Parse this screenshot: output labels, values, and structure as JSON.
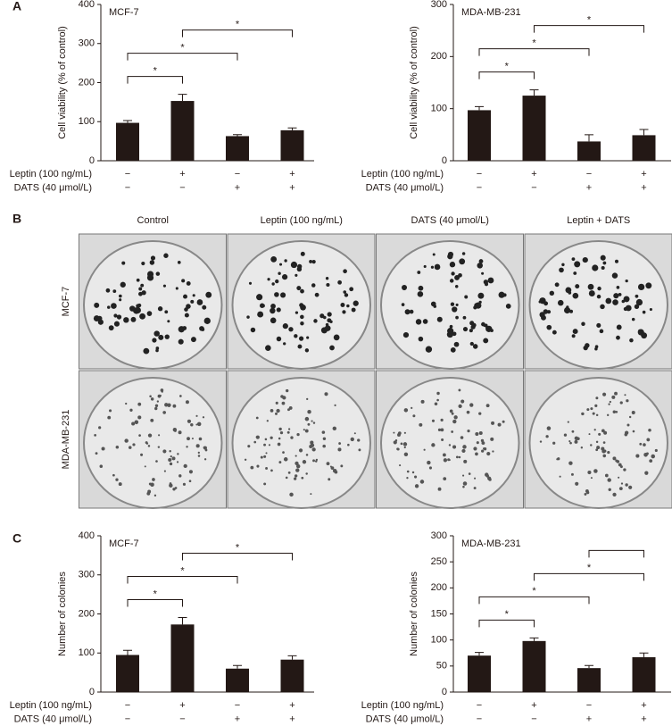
{
  "panel_labels": [
    "A",
    "B",
    "C"
  ],
  "photos": {
    "columns": [
      "Control",
      "Leptin (100 ng/mL)",
      "DATS (40 μmol/L)",
      "Leptin + DATS"
    ],
    "rows": [
      "MCF-7",
      "MDA-MB-231"
    ]
  },
  "chart_data": [
    {
      "type": "bar",
      "title": "MCF-7",
      "ylabel": "Cell viability (% of control)",
      "color": "#231815",
      "conditions": [
        {
          "name": "Leptin (100 ng/mL)",
          "marks": [
            "−",
            "+",
            "−",
            "+"
          ]
        },
        {
          "name": "DATS (40 μmol/L)",
          "marks": [
            "−",
            "−",
            "+",
            "+"
          ]
        }
      ],
      "values": [
        97,
        153,
        63,
        78
      ],
      "errors": [
        6,
        17,
        4,
        6
      ],
      "ylim": [
        0,
        400
      ],
      "yticks": [
        0,
        100,
        200,
        300,
        400
      ],
      "brackets": [
        {
          "from": 0,
          "to": 1,
          "label": "*"
        },
        {
          "from": 0,
          "to": 2,
          "label": "*"
        },
        {
          "from": 1,
          "to": 3,
          "label": "*"
        }
      ]
    },
    {
      "type": "bar",
      "title": "MDA-MB-231",
      "ylabel": "Cell viability (% of control)",
      "color": "#231815",
      "conditions": [
        {
          "name": "Leptin (100 ng/mL)",
          "marks": [
            "−",
            "+",
            "−",
            "+"
          ]
        },
        {
          "name": "DATS (40 μmol/L)",
          "marks": [
            "−",
            "−",
            "+",
            "+"
          ]
        }
      ],
      "values": [
        97,
        125,
        37,
        49
      ],
      "errors": [
        7,
        11,
        13,
        11
      ],
      "ylim": [
        0,
        300
      ],
      "yticks": [
        0,
        100,
        200,
        300
      ],
      "brackets": [
        {
          "from": 0,
          "to": 1,
          "label": "*"
        },
        {
          "from": 0,
          "to": 2,
          "label": "*"
        },
        {
          "from": 1,
          "to": 3,
          "label": "*"
        }
      ]
    },
    {
      "type": "bar",
      "title": "MCF-7",
      "ylabel": "Number of colonies",
      "color": "#231815",
      "conditions": [
        {
          "name": "Leptin (100 ng/mL)",
          "marks": [
            "−",
            "+",
            "−",
            "+"
          ]
        },
        {
          "name": "DATS (40 μmol/L)",
          "marks": [
            "−",
            "−",
            "+",
            "+"
          ]
        }
      ],
      "values": [
        95,
        173,
        60,
        83
      ],
      "errors": [
        12,
        18,
        8,
        10
      ],
      "ylim": [
        0,
        400
      ],
      "yticks": [
        0,
        100,
        200,
        300,
        400
      ],
      "brackets": [
        {
          "from": 0,
          "to": 1,
          "label": "*"
        },
        {
          "from": 0,
          "to": 2,
          "label": "*"
        },
        {
          "from": 1,
          "to": 3,
          "label": "*"
        }
      ]
    },
    {
      "type": "bar",
      "title": "MDA-MB-231",
      "ylabel": "Number of colonies",
      "color": "#231815",
      "conditions": [
        {
          "name": "Leptin (100 ng/mL)",
          "marks": [
            "−",
            "+",
            "−",
            "+"
          ]
        },
        {
          "name": "DATS (40 μmol/L)",
          "marks": [
            "−",
            "−",
            "+",
            "+"
          ]
        }
      ],
      "values": [
        70,
        98,
        46,
        67
      ],
      "errors": [
        6,
        6,
        5,
        8
      ],
      "ylim": [
        0,
        300
      ],
      "yticks": [
        0,
        50,
        100,
        150,
        200,
        250,
        300
      ],
      "brackets": [
        {
          "from": 0,
          "to": 1,
          "label": "*"
        },
        {
          "from": 0,
          "to": 2,
          "label": "*"
        },
        {
          "from": 1,
          "to": 3,
          "label": "*"
        },
        {
          "from": 2,
          "to": 3
        }
      ]
    }
  ]
}
